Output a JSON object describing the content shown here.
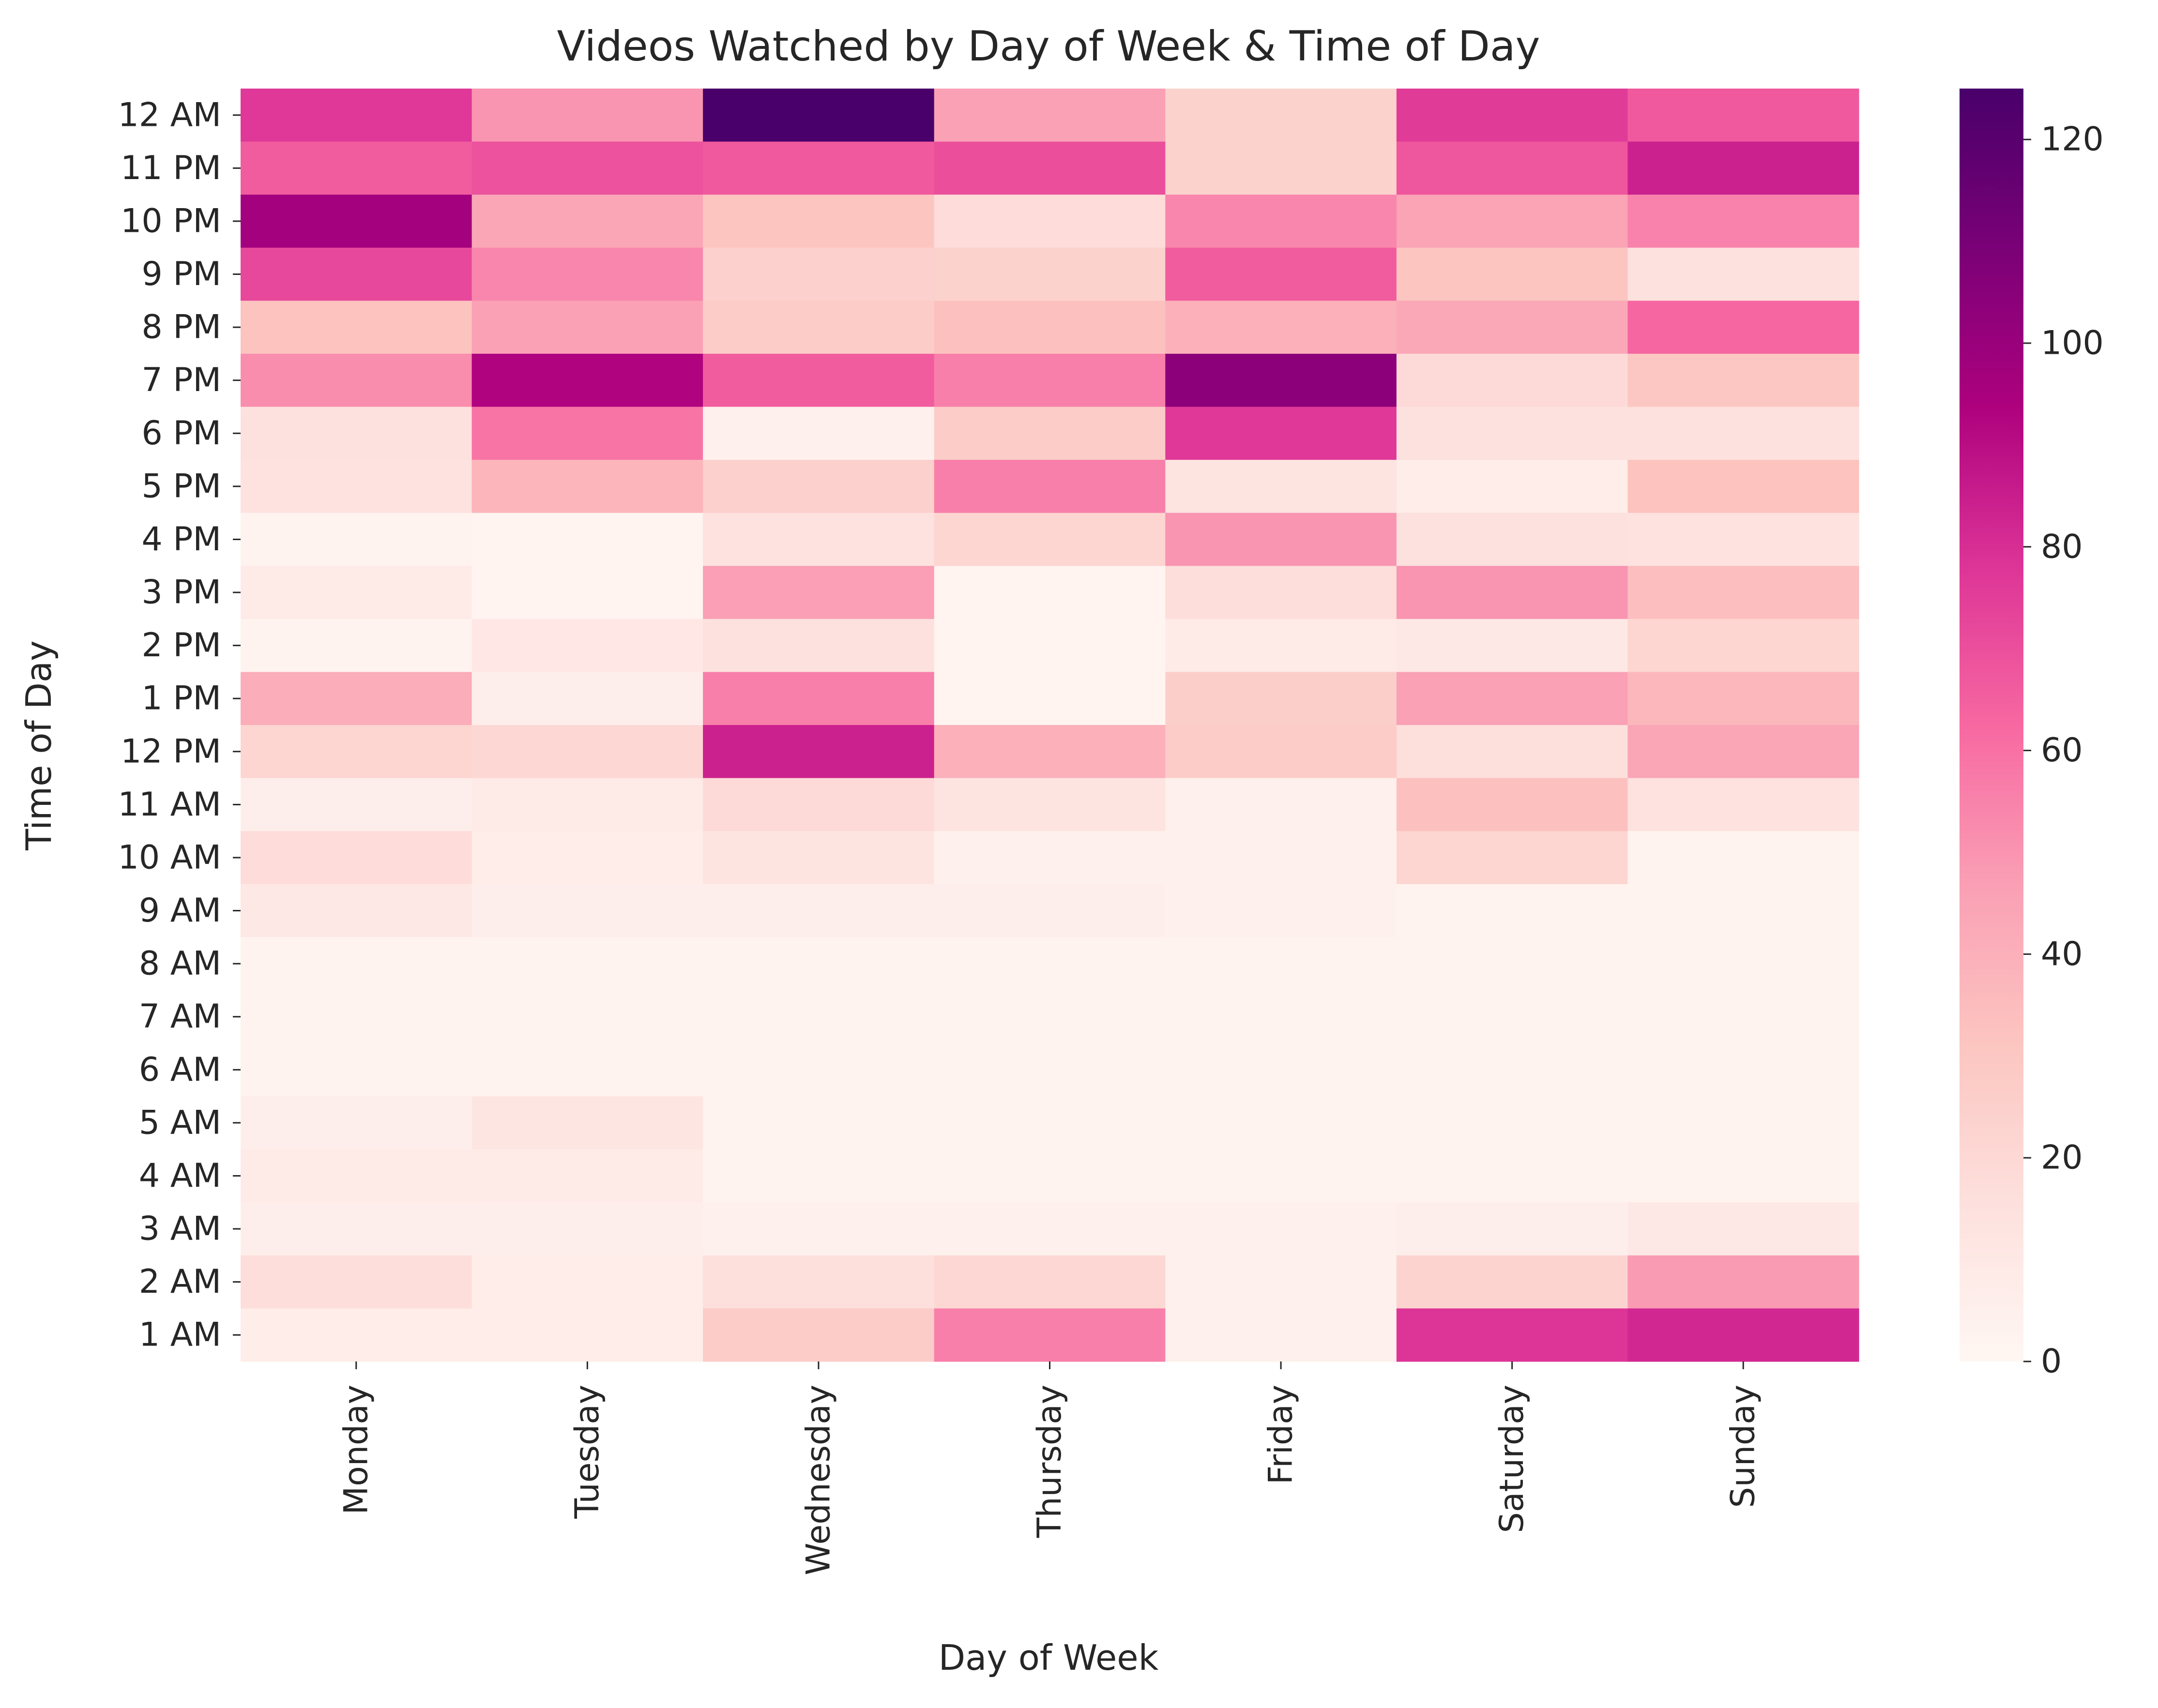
{
  "chart_data": {
    "type": "heatmap",
    "title": "Videos Watched by Day of Week & Time of Day",
    "xlabel": "Day of Week",
    "ylabel": "Time of Day",
    "x": [
      "Monday",
      "Tuesday",
      "Wednesday",
      "Thursday",
      "Friday",
      "Saturday",
      "Sunday"
    ],
    "y": [
      "12 AM",
      "11 PM",
      "10 PM",
      "9 PM",
      "8 PM",
      "7 PM",
      "6 PM",
      "5 PM",
      "4 PM",
      "3 PM",
      "2 PM",
      "1 PM",
      "12 PM",
      "11 AM",
      "10 AM",
      "9 AM",
      "8 AM",
      "7 AM",
      "6 AM",
      "5 AM",
      "4 AM",
      "3 AM",
      "2 AM",
      "1 AM"
    ],
    "values": [
      [
        77,
        50,
        125,
        46,
        24,
        76,
        67
      ],
      [
        66,
        69,
        67,
        70,
        24,
        68,
        84
      ],
      [
        97,
        44,
        31,
        18,
        54,
        45,
        55
      ],
      [
        72,
        54,
        25,
        24,
        66,
        31,
        15
      ],
      [
        32,
        46,
        27,
        33,
        40,
        43,
        63
      ],
      [
        52,
        93,
        66,
        56,
        104,
        19,
        30
      ],
      [
        15,
        59,
        4,
        27,
        77,
        15,
        15
      ],
      [
        14,
        38,
        25,
        56,
        13,
        7,
        32
      ],
      [
        3,
        2,
        14,
        22,
        50,
        15,
        14
      ],
      [
        9,
        2,
        47,
        2,
        17,
        50,
        34
      ],
      [
        3,
        11,
        15,
        2,
        9,
        10,
        22
      ],
      [
        41,
        6,
        56,
        2,
        26,
        46,
        37
      ],
      [
        22,
        21,
        84,
        40,
        27,
        16,
        44
      ],
      [
        6,
        9,
        19,
        13,
        5,
        33,
        14
      ],
      [
        18,
        7,
        13,
        4,
        4,
        22,
        3
      ],
      [
        10,
        6,
        6,
        6,
        4,
        3,
        3
      ],
      [
        3,
        3,
        3,
        3,
        3,
        3,
        3
      ],
      [
        3,
        3,
        3,
        3,
        3,
        3,
        3
      ],
      [
        3,
        3,
        3,
        3,
        3,
        3,
        3
      ],
      [
        6,
        12,
        3,
        3,
        3,
        3,
        3
      ],
      [
        9,
        8,
        3,
        3,
        3,
        3,
        3
      ],
      [
        6,
        6,
        4,
        4,
        4,
        6,
        10
      ],
      [
        17,
        7,
        16,
        21,
        5,
        23,
        48
      ],
      [
        7,
        7,
        27,
        56,
        5,
        78,
        82
      ]
    ],
    "colorbar": {
      "min": 0,
      "max": 125,
      "ticks": [
        0,
        20,
        40,
        60,
        80,
        100,
        120
      ],
      "colormap": "RdPu",
      "stops": [
        "#fff7f3",
        "#fde0dd",
        "#fcc5c0",
        "#fa9fb5",
        "#f768a1",
        "#dd3497",
        "#ae017e",
        "#7a0177",
        "#49006a"
      ]
    },
    "grid": false
  }
}
